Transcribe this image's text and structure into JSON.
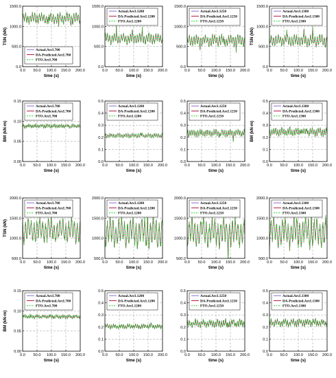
{
  "legend_style": {
    "colors": {
      "actual": "#8b6bd6",
      "da": "#b0204a",
      "fto": "#22d322"
    },
    "dashes": {
      "actual": "",
      "da": "",
      "fto": "2,1.5"
    }
  },
  "chart_data": [
    {
      "id": "r1c1",
      "type": "line",
      "xlabel": "time (s)",
      "ylabel": "TSN (kN)",
      "xlim": [
        0,
        200
      ],
      "ylim": [
        0,
        1500
      ],
      "xticks": [
        "0.0",
        "50.0",
        "100.0",
        "150.0",
        "200.0"
      ],
      "yticks": [
        "0.0",
        "500.0",
        "1000.0",
        "1500.0"
      ],
      "grid": true,
      "legend_position": "lower-left",
      "series": [
        {
          "name": "Actual.ArcL700",
          "key": "actual"
        },
        {
          "name": "DA-Predicted.ArcL700",
          "key": "da"
        },
        {
          "name": "FTO.ArcL700",
          "key": "fto"
        }
      ],
      "signal": {
        "mean": 1200,
        "amplitude": 90,
        "period": 8,
        "noise": 40,
        "spike_times": [
          90,
          125,
          168
        ]
      }
    },
    {
      "id": "r1c2",
      "type": "line",
      "xlabel": "time (s)",
      "ylabel": "",
      "xlim": [
        0,
        200
      ],
      "ylim": [
        0,
        1500
      ],
      "xticks": [
        "0.0",
        "50.0",
        "100.0",
        "150.0",
        "200.0"
      ],
      "yticks": [
        "0.0",
        "500.0",
        "1000.0",
        "1500.0"
      ],
      "grid": true,
      "legend_position": "top",
      "series": [
        {
          "name": "Actual.ArcL1200",
          "key": "actual"
        },
        {
          "name": "DA-Predicted.ArcL1200",
          "key": "da"
        },
        {
          "name": "FTO.ArcL1200",
          "key": "fto"
        }
      ],
      "signal": {
        "mean": 700,
        "amplitude": 90,
        "period": 8,
        "noise": 40,
        "spike_times": [
          40,
          95,
          130
        ]
      }
    },
    {
      "id": "r1c3",
      "type": "line",
      "xlabel": "time (s)",
      "ylabel": "",
      "xlim": [
        0,
        200
      ],
      "ylim": [
        0,
        1500
      ],
      "xticks": [
        "0.0",
        "50.0",
        "100.0",
        "150.0",
        "200.0"
      ],
      "yticks": [
        "0.0",
        "500.0",
        "1000.0",
        "1500.0"
      ],
      "grid": true,
      "legend_position": "top",
      "series": [
        {
          "name": "Actual.ArcL1250",
          "key": "actual"
        },
        {
          "name": "DA-Predicted.ArcL1250",
          "key": "da"
        },
        {
          "name": "FTO.ArcL1250",
          "key": "fto"
        }
      ],
      "signal": {
        "mean": 650,
        "amplitude": 95,
        "period": 8,
        "noise": 40,
        "spike_times": [
          45,
          128,
          170
        ]
      }
    },
    {
      "id": "r1c4",
      "type": "line",
      "xlabel": "time (s)",
      "ylabel": "TSN (kN)",
      "xlim": [
        0,
        200
      ],
      "ylim": [
        0,
        1500
      ],
      "xticks": [
        "0.0",
        "50.0",
        "100.0",
        "150.0",
        "200.0"
      ],
      "yticks": [
        "0.0",
        "500.0",
        "1000.0",
        "1500.0"
      ],
      "grid": true,
      "legend_position": "top",
      "series": [
        {
          "name": "Actual.ArcL1300",
          "key": "actual"
        },
        {
          "name": "DA-Predicted.ArcL1300",
          "key": "da"
        },
        {
          "name": "FTO.ArcL1300",
          "key": "fto"
        }
      ],
      "signal": {
        "mean": 650,
        "amplitude": 100,
        "period": 8,
        "noise": 40,
        "spike_times": [
          60,
          120,
          150
        ]
      }
    },
    {
      "id": "r2c1",
      "type": "line",
      "xlabel": "time (s)",
      "ylabel": "BM (kN-m)",
      "xlim": [
        0,
        200
      ],
      "ylim": [
        0,
        0.15
      ],
      "xticks": [
        "0.0",
        "50.0",
        "100.0",
        "150.0",
        "200.0"
      ],
      "yticks": [
        "0.00",
        "0.05",
        "0.10",
        "0.15"
      ],
      "grid": true,
      "legend_position": "top",
      "series": [
        {
          "name": "Actual.ArcL700",
          "key": "actual"
        },
        {
          "name": "DA-Predicted.ArcL700",
          "key": "da"
        },
        {
          "name": "FTO.ArcL700",
          "key": "fto"
        }
      ],
      "signal": {
        "mean": 0.088,
        "amplitude": 0.003,
        "period": 6,
        "noise": 0.002,
        "spike_times": []
      }
    },
    {
      "id": "r2c2",
      "type": "line",
      "xlabel": "time (s)",
      "ylabel": "",
      "xlim": [
        0,
        200
      ],
      "ylim": [
        0,
        0.5
      ],
      "xticks": [
        "0.0",
        "50.0",
        "100.0",
        "150.0",
        "200.0"
      ],
      "yticks": [
        "0.0",
        "0.1",
        "0.2",
        "0.3",
        "0.4",
        "0.5"
      ],
      "grid": true,
      "legend_position": "top",
      "series": [
        {
          "name": "Actual.ArcL1200",
          "key": "actual"
        },
        {
          "name": "DA-Predicted.ArcL1200",
          "key": "da"
        },
        {
          "name": "FTO.ArcL1200",
          "key": "fto"
        }
      ],
      "signal": {
        "mean": 0.215,
        "amplitude": 0.012,
        "period": 7,
        "noise": 0.006,
        "spike_times": [
          125
        ]
      }
    },
    {
      "id": "r2c3",
      "type": "line",
      "xlabel": "time (s)",
      "ylabel": "",
      "xlim": [
        0,
        200
      ],
      "ylim": [
        0,
        0.5
      ],
      "xticks": [
        "0.0",
        "50.0",
        "100.0",
        "150.0",
        "200.0"
      ],
      "yticks": [
        "0.0",
        "0.1",
        "0.2",
        "0.3",
        "0.4",
        "0.5"
      ],
      "grid": true,
      "legend_position": "top",
      "series": [
        {
          "name": "Actual.ArcL1250",
          "key": "actual"
        },
        {
          "name": "DA-Predicted.ArcL1250",
          "key": "da"
        },
        {
          "name": "FTO.ArcL1250",
          "key": "fto"
        }
      ],
      "signal": {
        "mean": 0.235,
        "amplitude": 0.02,
        "period": 7,
        "noise": 0.01,
        "spike_times": [
          115,
          160
        ]
      }
    },
    {
      "id": "r2c4",
      "type": "line",
      "xlabel": "time (s)",
      "ylabel": "BM (kN-m)",
      "xlim": [
        0,
        200
      ],
      "ylim": [
        0,
        0.5
      ],
      "xticks": [
        "0.0",
        "50.0",
        "100.0",
        "150.0",
        "200.0"
      ],
      "yticks": [
        "0.0",
        "0.1",
        "0.2",
        "0.3",
        "0.4",
        "0.5"
      ],
      "grid": true,
      "legend_position": "top",
      "series": [
        {
          "name": "Actual.ArcL1300",
          "key": "actual"
        },
        {
          "name": "DA-Predicted.ArcL1300",
          "key": "da"
        },
        {
          "name": "FTO.ArcL1300",
          "key": "fto"
        }
      ],
      "signal": {
        "mean": 0.245,
        "amplitude": 0.022,
        "period": 7,
        "noise": 0.012,
        "spike_times": [
          110,
          130
        ]
      }
    },
    {
      "id": "r3c1",
      "type": "line",
      "xlabel": "time (s)",
      "ylabel": "TSN (kN)",
      "xlim": [
        0,
        200
      ],
      "ylim": [
        500,
        2000
      ],
      "xticks": [
        "0.0",
        "50.0",
        "100.0",
        "150.0",
        "200.0"
      ],
      "yticks": [
        "500.0",
        "1000.0",
        "1500.0",
        "2000.0"
      ],
      "grid": true,
      "legend_position": "top",
      "series": [
        {
          "name": "Actual.ArcL700",
          "key": "actual"
        },
        {
          "name": "DA-Predicted.ArcL700",
          "key": "da"
        },
        {
          "name": "FTO.ArcL700",
          "key": "fto"
        }
      ],
      "signal": {
        "mean": 1200,
        "amplitude": 200,
        "period": 10,
        "noise": 80,
        "spike_times": []
      }
    },
    {
      "id": "r3c2",
      "type": "line",
      "xlabel": "time (s)",
      "ylabel": "",
      "xlim": [
        0,
        200
      ],
      "ylim": [
        500,
        2000
      ],
      "xticks": [
        "0.0",
        "50.0",
        "100.0",
        "150.0",
        "200.0"
      ],
      "yticks": [
        "500.0",
        "1000.0",
        "1500.0",
        "2000.0"
      ],
      "grid": true,
      "legend_position": "top",
      "series": [
        {
          "name": "Actual.ArcL1200",
          "key": "actual"
        },
        {
          "name": "DA-Predicted.ArcL1200",
          "key": "da"
        },
        {
          "name": "FTO.ArcL1200",
          "key": "fto"
        }
      ],
      "signal": {
        "mean": 1150,
        "amplitude": 250,
        "period": 10,
        "noise": 100,
        "spike_times": [
          148
        ]
      }
    },
    {
      "id": "r3c3",
      "type": "line",
      "xlabel": "time (s)",
      "ylabel": "",
      "xlim": [
        0,
        200
      ],
      "ylim": [
        500,
        2000
      ],
      "xticks": [
        "0.0",
        "50.0",
        "100.0",
        "150.0",
        "200.0"
      ],
      "yticks": [
        "500.0",
        "1000.0",
        "1500.0",
        "2000.0"
      ],
      "grid": true,
      "legend_position": "top",
      "series": [
        {
          "name": "Actual.ArcL1250",
          "key": "actual"
        },
        {
          "name": "DA-Predicted.ArcL1250",
          "key": "da"
        },
        {
          "name": "FTO.ArcL1250",
          "key": "fto"
        }
      ],
      "signal": {
        "mean": 1150,
        "amplitude": 240,
        "period": 10,
        "noise": 100,
        "spike_times": [
          142
        ]
      }
    },
    {
      "id": "r3c4",
      "type": "line",
      "xlabel": "time (s)",
      "ylabel": "",
      "xlim": [
        0,
        200
      ],
      "ylim": [
        500,
        2000
      ],
      "xticks": [
        "0.0",
        "50.0",
        "100.0",
        "150.0",
        "200.0"
      ],
      "yticks": [
        "500.0",
        "1000.0",
        "1500.0",
        "2000.0"
      ],
      "grid": true,
      "legend_position": "top",
      "series": [
        {
          "name": "Actual.ArcL1300",
          "key": "actual"
        },
        {
          "name": "DA-Predicted.ArcL1300",
          "key": "da"
        },
        {
          "name": "FTO.ArcL1300",
          "key": "fto"
        }
      ],
      "signal": {
        "mean": 1150,
        "amplitude": 250,
        "period": 10,
        "noise": 100,
        "spike_times": [
          145
        ]
      }
    },
    {
      "id": "r4c1",
      "type": "line",
      "xlabel": "time (s)",
      "ylabel": "BM (kN-m)",
      "xlim": [
        0,
        200
      ],
      "ylim": [
        0,
        0.15
      ],
      "xticks": [
        "0.0",
        "50.0",
        "100.0",
        "150.0",
        "200.0"
      ],
      "yticks": [
        "0.00",
        "0.05",
        "0.10",
        "0.15"
      ],
      "grid": true,
      "legend_position": "top",
      "series": [
        {
          "name": "Actual.ArcL700",
          "key": "actual"
        },
        {
          "name": "DA-Predicted.ArcL700",
          "key": "da"
        },
        {
          "name": "FTO.ArcL700",
          "key": "fto"
        }
      ],
      "signal": {
        "mean": 0.086,
        "amplitude": 0.003,
        "period": 6,
        "noise": 0.002,
        "spike_times": []
      }
    },
    {
      "id": "r4c2",
      "type": "line",
      "xlabel": "time (s)",
      "ylabel": "",
      "xlim": [
        0,
        200
      ],
      "ylim": [
        0,
        0.5
      ],
      "xticks": [
        "0.0",
        "50.0",
        "100.0",
        "150.0",
        "200.0"
      ],
      "yticks": [
        "0.0",
        "0.1",
        "0.2",
        "0.3",
        "0.4",
        "0.5"
      ],
      "grid": true,
      "legend_position": "top",
      "series": [
        {
          "name": "Actual.ArcL1200",
          "key": "actual"
        },
        {
          "name": "DA-Predicted.ArcL1200",
          "key": "da"
        },
        {
          "name": "FTO.ArcL1200",
          "key": "fto"
        }
      ],
      "signal": {
        "mean": 0.205,
        "amplitude": 0.012,
        "period": 7,
        "noise": 0.008,
        "spike_times": [
          95,
          160
        ]
      }
    },
    {
      "id": "r4c3",
      "type": "line",
      "xlabel": "time (s)",
      "ylabel": "",
      "xlim": [
        0,
        200
      ],
      "ylim": [
        0,
        0.5
      ],
      "xticks": [
        "0.0",
        "50.0",
        "100.0",
        "150.0",
        "200.0"
      ],
      "yticks": [
        "0.0",
        "0.1",
        "0.2",
        "0.3",
        "0.4",
        "0.5"
      ],
      "grid": true,
      "legend_position": "top",
      "series": [
        {
          "name": "Actual.ArcL1250",
          "key": "actual"
        },
        {
          "name": "DA-Predicted.ArcL1250",
          "key": "da"
        },
        {
          "name": "FTO.ArcL1250",
          "key": "fto"
        }
      ],
      "signal": {
        "mean": 0.23,
        "amplitude": 0.02,
        "period": 7,
        "noise": 0.012,
        "spike_times": [
          140,
          168
        ]
      }
    },
    {
      "id": "r4c4",
      "type": "line",
      "xlabel": "time (s)",
      "ylabel": "",
      "xlim": [
        0,
        200
      ],
      "ylim": [
        0,
        0.5
      ],
      "xticks": [
        "0.0",
        "50.0",
        "100.0",
        "150.0",
        "200.0"
      ],
      "yticks": [
        "0.0",
        "0.1",
        "0.2",
        "0.3",
        "0.4",
        "0.5"
      ],
      "grid": true,
      "legend_position": "top",
      "series": [
        {
          "name": "Actual.ArcL1300",
          "key": "actual"
        },
        {
          "name": "DA-Predicted.ArcL1300",
          "key": "da"
        },
        {
          "name": "FTO.ArcL1300",
          "key": "fto"
        }
      ],
      "signal": {
        "mean": 0.235,
        "amplitude": 0.02,
        "period": 7,
        "noise": 0.012,
        "spike_times": [
          142,
          150
        ]
      }
    }
  ]
}
